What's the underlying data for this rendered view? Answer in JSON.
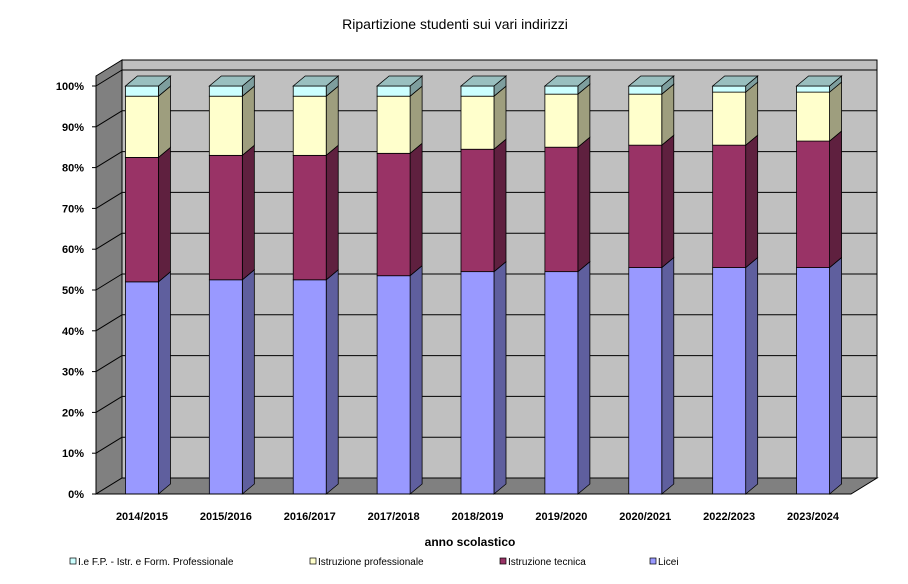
{
  "chart_data": {
    "type": "bar",
    "stacked": "percent",
    "title": "Ripartizione studenti sui vari indirizzi",
    "xlabel": "anno scolastico",
    "ylabel": "",
    "ylim": [
      0,
      100
    ],
    "yticks": [
      "0%",
      "10%",
      "20%",
      "30%",
      "40%",
      "50%",
      "60%",
      "70%",
      "80%",
      "90%",
      "100%"
    ],
    "categories": [
      "2014/2015",
      "2015/2016",
      "2016/2017",
      "2017/2018",
      "2018/2019",
      "2019/2020",
      "2020/2021",
      "2022/2023",
      "2023/2024"
    ],
    "series": [
      {
        "name": "Licei",
        "color": "#9999ff",
        "values": [
          52,
          52.5,
          52.5,
          53.5,
          54.5,
          54.5,
          55.5,
          55.5,
          55.5
        ]
      },
      {
        "name": "Istruzione tecnica",
        "color": "#993366",
        "values": [
          30.5,
          30.5,
          30.5,
          30,
          30,
          30.5,
          30,
          30,
          31
        ]
      },
      {
        "name": "Istruzione professionale",
        "color": "#ffffcc",
        "values": [
          15,
          14.5,
          14.5,
          14,
          13,
          13,
          12.5,
          13,
          12
        ]
      },
      {
        "name": "I.e F.P. - Istr. e Form. Professionale",
        "color": "#ccffff",
        "values": [
          2.5,
          2.5,
          2.5,
          2.5,
          2.5,
          2,
          2,
          1.5,
          1.5
        ]
      }
    ],
    "legend_order": [
      "I.e F.P. - Istr. e Form. Professionale",
      "Istruzione professionale",
      "Istruzione tecnica",
      "Licei"
    ],
    "legend": "bottom",
    "grid": true
  }
}
